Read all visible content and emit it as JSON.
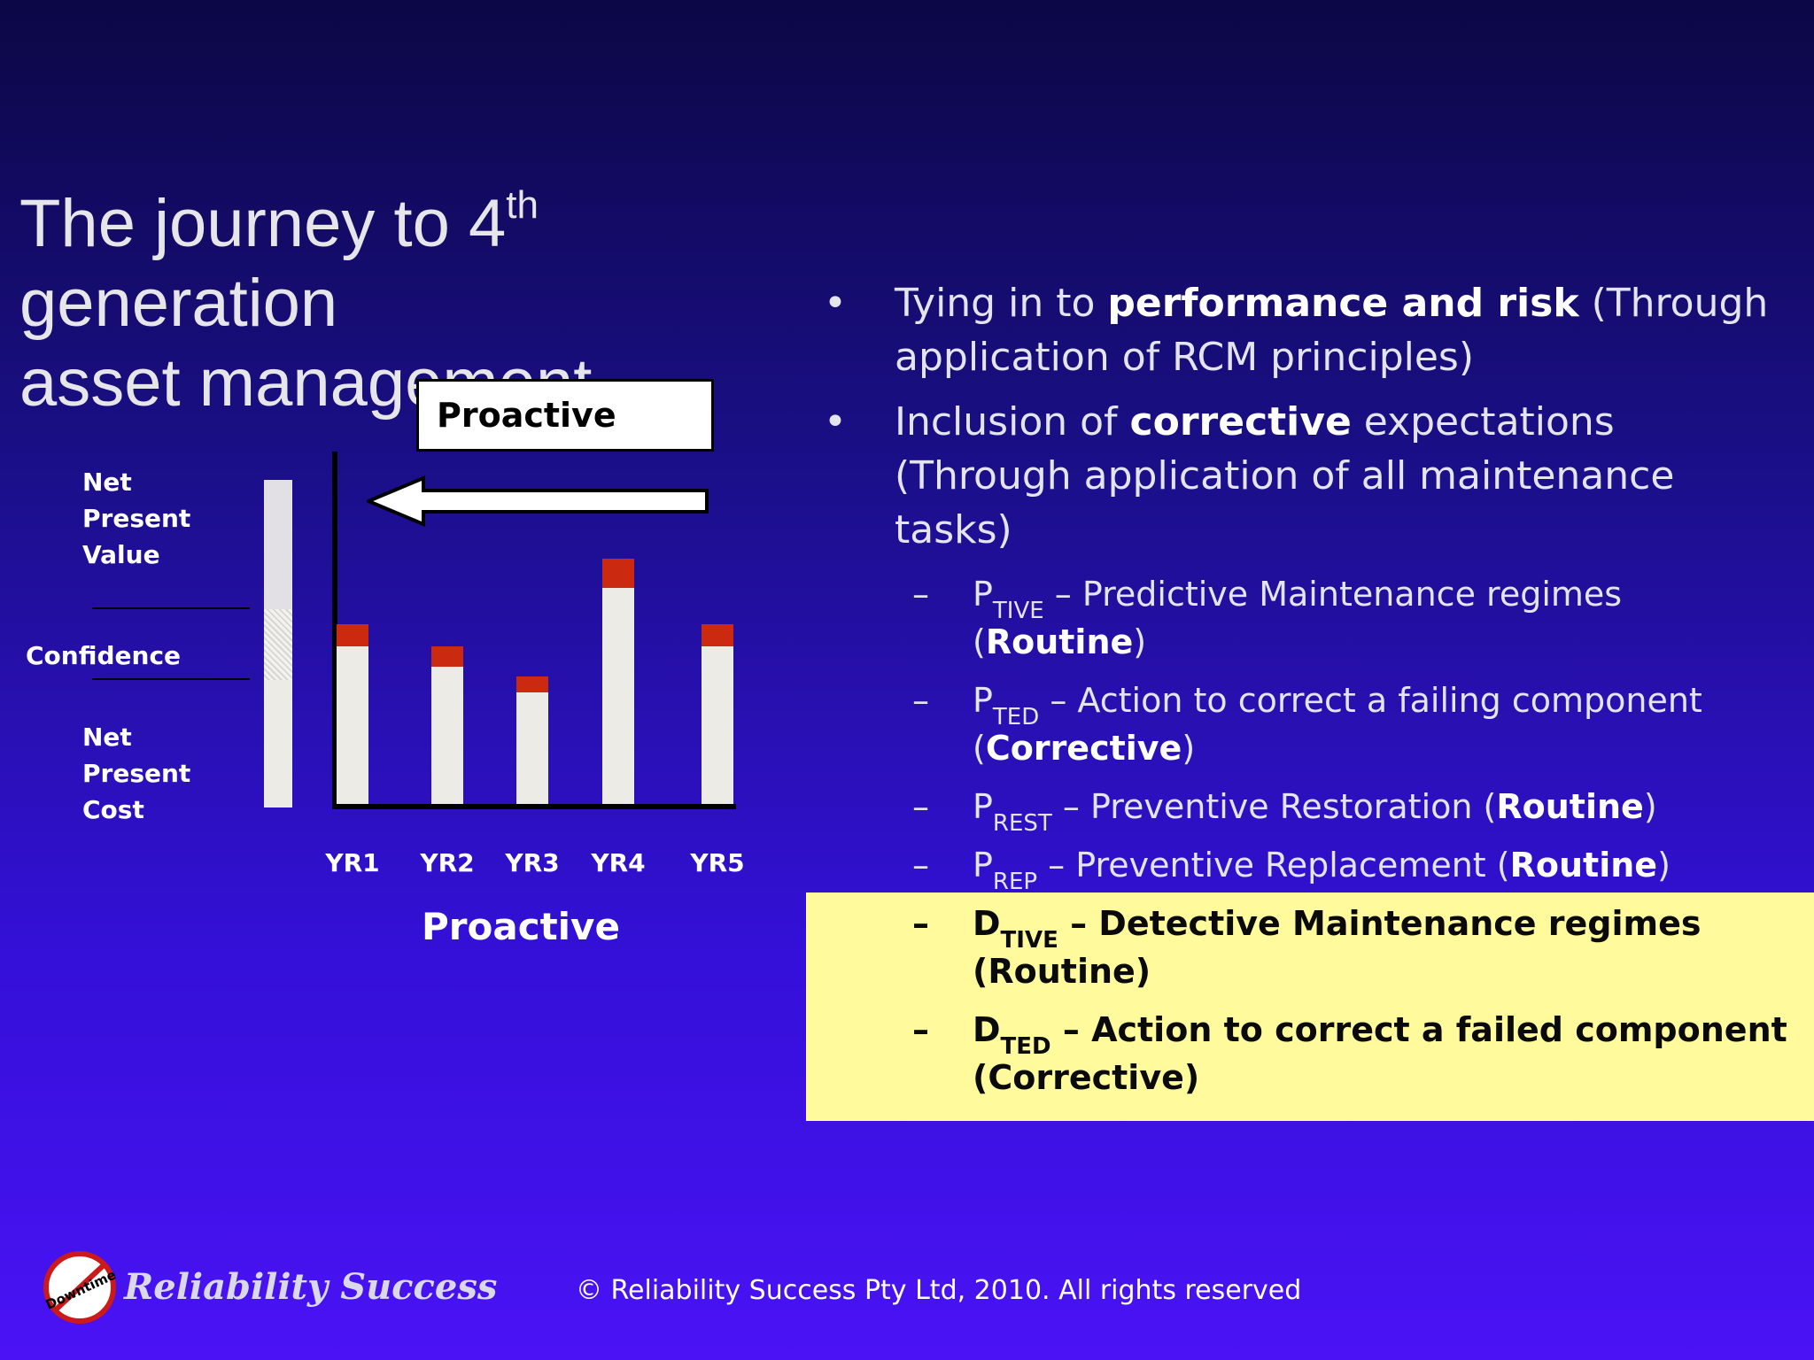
{
  "title": {
    "line1_pre": "The journey to 4",
    "line1_sup": "th",
    "line1_post": " generation",
    "line2": "asset management"
  },
  "chart_data": {
    "type": "bar",
    "categories": [
      "YR1",
      "YR2",
      "YR3",
      "YR4",
      "YR5"
    ],
    "series": [
      {
        "values": [
          24,
          21,
          17,
          33,
          24
        ]
      },
      {
        "values": [
          3.5,
          3.0,
          2.5,
          4.5,
          3.5
        ]
      }
    ],
    "title": "Proactive",
    "xlabel": "Proactive",
    "ylabel": "",
    "stacked": true,
    "ylim": [
      0,
      50
    ],
    "legend_labels": [
      "Net Present Value",
      "Confidence",
      "Net Present Cost"
    ],
    "arrow_label": "Proactive",
    "colors": {
      "base": "#ecebe5",
      "cap": "#cc2a10"
    }
  },
  "bullets": [
    {
      "pre": "Tying in to ",
      "bold": "performance and risk",
      "post": " (Through",
      "line2": "application of RCM principles)"
    },
    {
      "pre": "Inclusion of ",
      "bold": "corrective",
      "post": " expectations",
      "line2": "(Through application of all maintenance",
      "line3": "tasks)"
    }
  ],
  "subitems": [
    {
      "letter": "P",
      "sub": "TIVE",
      "text": " – Predictive Maintenance regimes",
      "line2_pre": "(",
      "line2_bold": "Routine",
      "line2_post": ")"
    },
    {
      "letter": "P",
      "sub": "TED",
      "text": " – Action to correct a failing component",
      "line2_pre": "(",
      "line2_bold": "Corrective",
      "line2_post": ")"
    },
    {
      "letter": "P",
      "sub": "REST",
      "text": " – Preventive Restoration (",
      "bold": "Routine",
      "post": ")"
    },
    {
      "letter": "P",
      "sub": "REP",
      "text": " – Preventive Replacement (",
      "bold": "Routine",
      "post": ")"
    },
    {
      "letter": "D",
      "sub": "TIVE",
      "text": " – Detective Maintenance regimes",
      "line2": "(Routine)"
    },
    {
      "letter": "D",
      "sub": "TED",
      "text": " – Action to correct a failed component",
      "line2": "(Corrective)"
    }
  ],
  "footer": "© Reliability Success Pty  Ltd, 2010. All rights reserved",
  "logo": {
    "text": "Reliability Success",
    "badge": "Downtime",
    "icon": "no-downtime-icon"
  }
}
